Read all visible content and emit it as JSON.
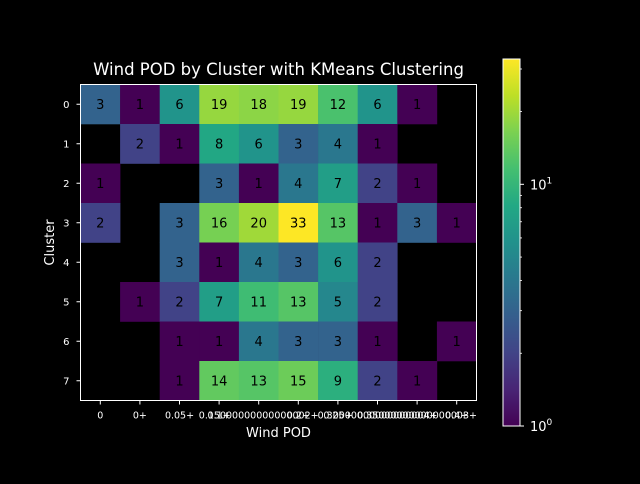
{
  "chart_data": {
    "type": "heatmap",
    "title": "Wind POD by Cluster with KMeans Clustering",
    "xlabel": "Wind POD",
    "ylabel": "Cluster",
    "x_categories": [
      "0",
      "0+",
      "0.05+",
      "0.1+",
      "0.15000000000000002+",
      "0.2+",
      "0.25+",
      "0.30000000000000004+",
      "0.35000000000000003+",
      "0.4+"
    ],
    "x_tick_labels": [
      "0",
      "0+",
      "0.05+",
      "0.1+",
      "0.15000000000000002+",
      "0.2+",
      "0.25+",
      "0.30000000000000004+",
      "0.35000000000000003+",
      "0.4+"
    ],
    "y_categories": [
      "0",
      "1",
      "2",
      "3",
      "4",
      "5",
      "6",
      "7"
    ],
    "values": [
      [
        3,
        1,
        6,
        19,
        18,
        19,
        12,
        6,
        1,
        null
      ],
      [
        null,
        2,
        1,
        8,
        6,
        3,
        4,
        1,
        null,
        null
      ],
      [
        1,
        null,
        null,
        3,
        1,
        4,
        7,
        2,
        1,
        null
      ],
      [
        2,
        null,
        3,
        16,
        20,
        33,
        13,
        1,
        3,
        1
      ],
      [
        null,
        null,
        3,
        1,
        4,
        3,
        6,
        2,
        null,
        null
      ],
      [
        null,
        1,
        2,
        7,
        11,
        13,
        5,
        2,
        null,
        null
      ],
      [
        null,
        null,
        1,
        1,
        4,
        3,
        3,
        1,
        null,
        1
      ],
      [
        null,
        null,
        1,
        14,
        13,
        15,
        9,
        2,
        1,
        null
      ]
    ],
    "colormap": "viridis",
    "color_scale": "log",
    "color_range": [
      1,
      33
    ],
    "colorbar_ticks": [
      {
        "value": 1,
        "label_base": "10",
        "label_exp": "0"
      },
      {
        "value": 10,
        "label_base": "10",
        "label_exp": "1"
      }
    ],
    "missing_color": "#000000",
    "label_color": "#000000",
    "grid": false
  }
}
